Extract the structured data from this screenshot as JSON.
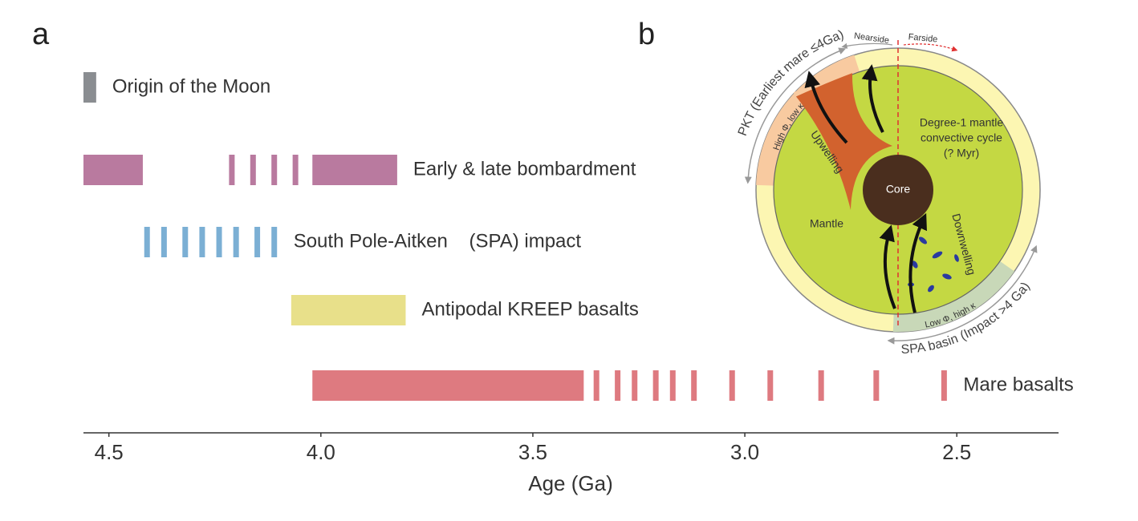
{
  "chart_data": {
    "type": "timeline",
    "panel_label": "a",
    "x_label": "Age (Ga)",
    "xlim": [
      4.56,
      2.26
    ],
    "xticks": [
      4.5,
      {
        "value": 4,
        "label": "4.0"
      },
      3.5,
      {
        "value": 3,
        "label": "3.0"
      },
      2.5
    ],
    "series": [
      {
        "name": "Origin of the Moon",
        "color": "#8a8d91",
        "ranges": [
          [
            4.56,
            4.53
          ]
        ],
        "events": []
      },
      {
        "name": "Early & late bombardment",
        "color": "#b97a9f",
        "ranges": [
          [
            4.56,
            4.42
          ],
          [
            4.02,
            3.82
          ]
        ],
        "events": [
          4.21,
          4.16,
          4.11,
          4.06
        ]
      },
      {
        "name": "South Pole-Aitken    (SPA) impact",
        "color": "#7bafd4",
        "ranges": [],
        "events": [
          4.41,
          4.37,
          4.32,
          4.28,
          4.24,
          4.2,
          4.15,
          4.11
        ]
      },
      {
        "name": "Antipodal KREEP basalts",
        "color": "#e8e08a",
        "ranges": [
          [
            4.07,
            3.8
          ]
        ],
        "events": []
      },
      {
        "name": "Mare basalts",
        "color": "#de7a80",
        "ranges": [
          [
            4.02,
            3.38
          ]
        ],
        "events": [
          3.35,
          3.3,
          3.26,
          3.21,
          3.17,
          3.12,
          3.03,
          2.94,
          2.82,
          2.69,
          2.53
        ]
      }
    ]
  },
  "diagram": {
    "panel_label": "b",
    "nearside": "Nearside",
    "farside": "Farside",
    "pkt": "PKT (Earliest mare ≤4Ga)",
    "spa": "SPA basin (Impact >4 Ga)",
    "pkt_props": "High Φ, low κ",
    "spa_props": "Low Φ, high κ",
    "cycle": [
      "Degree-1 mantle",
      "convective cycle",
      "(? Myr)"
    ],
    "core": "Core",
    "mantle": "Mantle",
    "upwelling": "Upwelling",
    "downwelling": "Downwelling"
  }
}
